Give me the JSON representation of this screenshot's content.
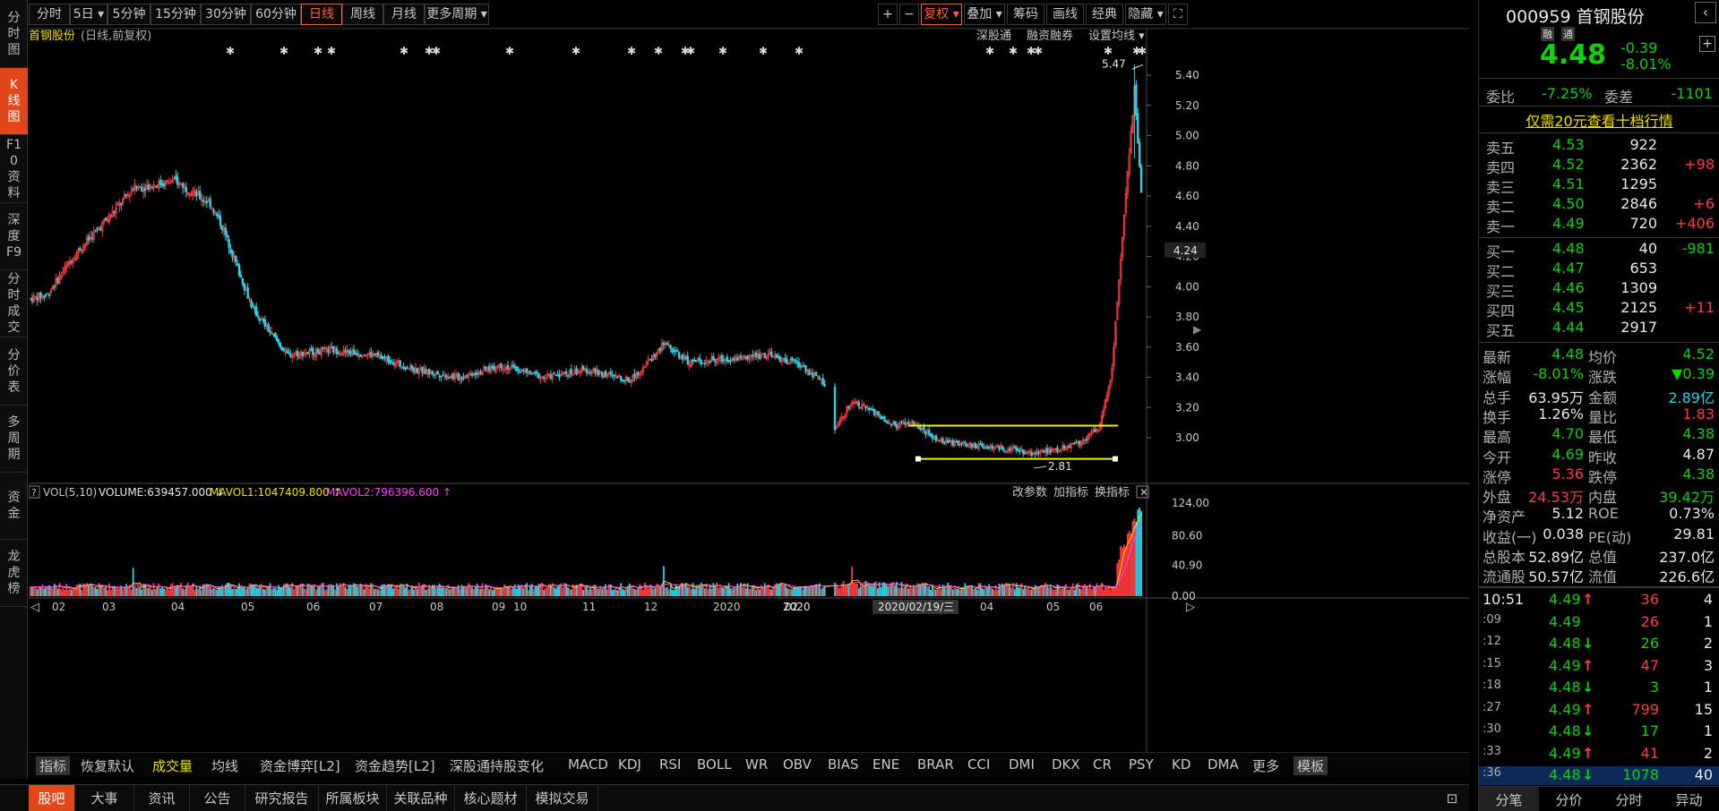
{
  "left_nav": [
    "分时图",
    "K线图",
    "F10资料",
    "深度F9",
    "分时成交",
    "分价表",
    "多周期",
    "资金",
    "龙虎榜"
  ],
  "period_tabs": [
    "分时",
    "5日 ▾",
    "5分钟",
    "15分钟",
    "30分钟",
    "60分钟",
    "日线",
    "周线",
    "月线",
    "更多周期 ▾"
  ],
  "right_tools": [
    "+",
    "−",
    "复权 ▾",
    "叠加 ▾",
    "筹码",
    "画线",
    "经典",
    "隐藏 ▾",
    "⛶"
  ],
  "chart_title": "首钢股份",
  "chart_subtitle": "(日线,前复权)",
  "chart_links": [
    "深股通",
    "融资融券",
    "设置均线 ▾"
  ],
  "vol_header": {
    "label": "VOL(5,10)",
    "volume": "VOLUME:639457.000",
    "mavol1": "MAVOL1:1047409.800",
    "mavol2": "MAVOL2:796396.600"
  },
  "vol_links": [
    "改参数",
    "加指标",
    "换指标"
  ],
  "annotations": {
    "high": "5.47",
    "low": "2.81",
    "crosshair_price": "4.24",
    "crosshair_date": "2020/02/19/三"
  },
  "price_ticks": [
    "5.40",
    "5.20",
    "5.00",
    "4.80",
    "4.60",
    "4.40",
    "4.20",
    "4.00",
    "3.80",
    "3.60",
    "3.40",
    "3.20",
    "3.00"
  ],
  "vol_ticks": [
    "124.00",
    "80.60",
    "40.90",
    "0.00"
  ],
  "months": [
    "02",
    "03",
    "04",
    "05",
    "06",
    "07",
    "08",
    "09",
    "10",
    "11",
    "12",
    "2020",
    "02",
    "03",
    "04",
    "05",
    "06"
  ],
  "indicator_tabs": [
    "指标",
    "恢复默认",
    "成交量",
    "均线",
    "资金博弈[L2]",
    "资金趋势[L2]",
    "深股通持股变化",
    "MACD",
    "KDJ",
    "RSI",
    "BOLL",
    "WR",
    "OBV",
    "BIAS",
    "ENE",
    "BRAR",
    "CCI",
    "DMI",
    "DKX",
    "CR",
    "PSY",
    "KD",
    "DMA",
    "更多",
    "模板"
  ],
  "bottom_tabs": [
    "股吧",
    "大事",
    "资讯",
    "公告",
    "研究报告",
    "所属板块",
    "关联品种",
    "核心题材",
    "模拟交易"
  ],
  "stock": {
    "code": "000959",
    "name": "首钢股份",
    "tags": [
      "融",
      "通"
    ],
    "price": "4.48",
    "change": "-0.39",
    "change_pct": "-8.01%"
  },
  "quote_ratio": {
    "label1": "委比",
    "value1": "-7.25%",
    "label2": "委差",
    "value2": "-1101"
  },
  "promo": "仅需20元查看十档行情",
  "asks": [
    {
      "label": "卖五",
      "price": "4.53",
      "vol": "922",
      "chg": ""
    },
    {
      "label": "卖四",
      "price": "4.52",
      "vol": "2362",
      "chg": "+98"
    },
    {
      "label": "卖三",
      "price": "4.51",
      "vol": "1295",
      "chg": ""
    },
    {
      "label": "卖二",
      "price": "4.50",
      "vol": "2846",
      "chg": "+6"
    },
    {
      "label": "卖一",
      "price": "4.49",
      "vol": "720",
      "chg": "+406"
    }
  ],
  "bids": [
    {
      "label": "买一",
      "price": "4.48",
      "vol": "40",
      "chg": "-981"
    },
    {
      "label": "买二",
      "price": "4.47",
      "vol": "653",
      "chg": ""
    },
    {
      "label": "买三",
      "price": "4.46",
      "vol": "1309",
      "chg": ""
    },
    {
      "label": "买四",
      "price": "4.45",
      "vol": "2125",
      "chg": "+11"
    },
    {
      "label": "买五",
      "price": "4.44",
      "vol": "2917",
      "chg": ""
    }
  ],
  "stats": [
    {
      "l1": "最新",
      "v1": "4.48",
      "c1": "green",
      "l2": "均价",
      "v2": "4.52",
      "c2": "green"
    },
    {
      "l1": "涨幅",
      "v1": "-8.01%",
      "c1": "green",
      "l2": "涨跌",
      "v2": "▼0.39",
      "c2": "green"
    },
    {
      "l1": "总手",
      "v1": "63.95万",
      "c1": "white",
      "l2": "金额",
      "v2": "2.89亿",
      "c2": "cyan"
    },
    {
      "l1": "换手",
      "v1": "1.26%",
      "c1": "white",
      "l2": "量比",
      "v2": "1.83",
      "c2": "red"
    },
    {
      "l1": "最高",
      "v1": "4.70",
      "c1": "green",
      "l2": "最低",
      "v2": "4.38",
      "c2": "green"
    },
    {
      "l1": "今开",
      "v1": "4.69",
      "c1": "green",
      "l2": "昨收",
      "v2": "4.87",
      "c2": "white"
    },
    {
      "l1": "涨停",
      "v1": "5.36",
      "c1": "red",
      "l2": "跌停",
      "v2": "4.38",
      "c2": "green"
    },
    {
      "l1": "外盘",
      "v1": "24.53万",
      "c1": "red",
      "l2": "内盘",
      "v2": "39.42万",
      "c2": "green"
    },
    {
      "l1": "净资产",
      "v1": "5.12",
      "c1": "white",
      "l2": "ROE",
      "v2": "0.73%",
      "c2": "white"
    },
    {
      "l1": "收益(一)",
      "v1": "0.038",
      "c1": "white",
      "l2": "PE(动)",
      "v2": "29.81",
      "c2": "white"
    },
    {
      "l1": "总股本",
      "v1": "52.89亿",
      "c1": "white",
      "l2": "总值",
      "v2": "237.0亿",
      "c2": "white"
    },
    {
      "l1": "流通股",
      "v1": "50.57亿",
      "c1": "white",
      "l2": "流值",
      "v2": "226.6亿",
      "c2": "white"
    }
  ],
  "ticks": [
    {
      "time": "10:51",
      "price": "4.49",
      "arrow": "↑",
      "ac": "red",
      "vol": "36",
      "vc": "red",
      "n": "4"
    },
    {
      "time": ":09",
      "price": "4.49",
      "arrow": "",
      "ac": "",
      "vol": "26",
      "vc": "red",
      "n": "1"
    },
    {
      "time": ":12",
      "price": "4.48",
      "arrow": "↓",
      "ac": "green",
      "vol": "26",
      "vc": "green",
      "n": "2"
    },
    {
      "time": ":15",
      "price": "4.49",
      "arrow": "↑",
      "ac": "red",
      "vol": "47",
      "vc": "red",
      "n": "3"
    },
    {
      "time": ":18",
      "price": "4.48",
      "arrow": "↓",
      "ac": "green",
      "vol": "3",
      "vc": "green",
      "n": "1"
    },
    {
      "time": ":27",
      "price": "4.49",
      "arrow": "↑",
      "ac": "red",
      "vol": "799",
      "vc": "red",
      "n": "15"
    },
    {
      "time": ":30",
      "price": "4.48",
      "arrow": "↓",
      "ac": "green",
      "vol": "17",
      "vc": "green",
      "n": "1"
    },
    {
      "time": ":33",
      "price": "4.49",
      "arrow": "↑",
      "ac": "red",
      "vol": "41",
      "vc": "red",
      "n": "2"
    },
    {
      "time": ":36",
      "price": "4.48",
      "arrow": "↓",
      "ac": "green",
      "vol": "1078",
      "vc": "green",
      "n": "40"
    }
  ],
  "side_tabs": [
    "分笔",
    "分价",
    "分时",
    "异动"
  ],
  "chart_data": {
    "type": "candlestick",
    "price_axis": {
      "min": 2.81,
      "max": 5.47,
      "ticks": [
        5.4,
        5.2,
        5.0,
        4.8,
        4.6,
        4.4,
        4.2,
        4.0,
        3.8,
        3.6,
        3.4,
        3.2,
        3.0
      ]
    },
    "close_path": [
      [
        0,
        3.92
      ],
      [
        10,
        3.95
      ],
      [
        25,
        4.2
      ],
      [
        45,
        4.45
      ],
      [
        60,
        4.65
      ],
      [
        85,
        4.7
      ],
      [
        105,
        4.55
      ],
      [
        112,
        4.4
      ],
      [
        130,
        3.85
      ],
      [
        150,
        3.55
      ],
      [
        175,
        3.58
      ],
      [
        200,
        3.55
      ],
      [
        225,
        3.45
      ],
      [
        250,
        3.4
      ],
      [
        275,
        3.48
      ],
      [
        300,
        3.4
      ],
      [
        325,
        3.45
      ],
      [
        350,
        3.38
      ],
      [
        365,
        3.55
      ],
      [
        370,
        3.62
      ],
      [
        385,
        3.5
      ],
      [
        405,
        3.52
      ],
      [
        430,
        3.55
      ],
      [
        450,
        3.48
      ],
      [
        465,
        3.35
      ],
      [
        470,
        3.05
      ],
      [
        480,
        3.25
      ],
      [
        495,
        3.15
      ],
      [
        505,
        3.08
      ],
      [
        515,
        3.1
      ],
      [
        530,
        2.98
      ],
      [
        550,
        2.95
      ],
      [
        570,
        2.93
      ],
      [
        585,
        2.9
      ],
      [
        600,
        2.92
      ],
      [
        615,
        2.98
      ],
      [
        625,
        3.08
      ],
      [
        632,
        3.45
      ],
      [
        638,
        4.35
      ],
      [
        645,
        5.3
      ],
      [
        650,
        4.45
      ]
    ],
    "volume_axis": {
      "min": 0,
      "max": 124.0,
      "ticks": [
        124.0,
        80.6,
        40.9,
        0.0
      ]
    },
    "last": {
      "volume": 639457,
      "mavol1": 1047409.8,
      "mavol2": 796396.6
    },
    "series_labels": [
      "VOLUME",
      "MAVOL1",
      "MAVOL2"
    ],
    "colors": {
      "up": "#ff3b3b",
      "down": "#2ad3e8",
      "ma5": "#f0e000",
      "ma10": "#ff40ff"
    }
  }
}
